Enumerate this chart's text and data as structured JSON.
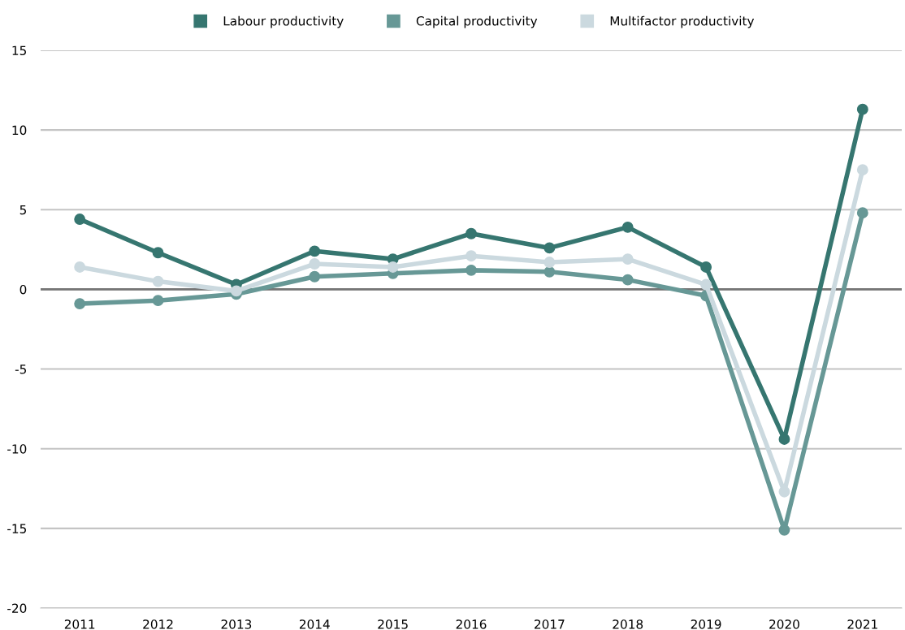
{
  "chart_data": {
    "type": "line",
    "categories": [
      "2011",
      "2012",
      "2013",
      "2014",
      "2015",
      "2016",
      "2017",
      "2018",
      "2019",
      "2020",
      "2021"
    ],
    "series": [
      {
        "name": "Labour productivity",
        "color": "#367670",
        "values": [
          4.4,
          2.3,
          0.3,
          2.4,
          1.9,
          3.5,
          2.6,
          3.9,
          1.4,
          -9.4,
          11.3
        ]
      },
      {
        "name": "Capital productivity",
        "color": "#679896",
        "values": [
          -0.9,
          -0.7,
          -0.3,
          0.8,
          1.0,
          1.2,
          1.1,
          0.6,
          -0.4,
          -15.1,
          4.8
        ]
      },
      {
        "name": "Multifactor productivity",
        "color": "#cbd9df",
        "values": [
          1.4,
          0.5,
          -0.1,
          1.6,
          1.4,
          2.1,
          1.7,
          1.9,
          0.3,
          -12.7,
          7.5
        ]
      }
    ],
    "ylim": [
      -20,
      15
    ],
    "yticks": [
      -20,
      -15,
      -10,
      -5,
      0,
      5,
      10,
      15
    ],
    "ref_lines": [
      {
        "axis": "y",
        "value": 0,
        "color": "#757575"
      }
    ],
    "grid": "y",
    "legend": "top",
    "marker": "circle",
    "line_style": "solid"
  }
}
